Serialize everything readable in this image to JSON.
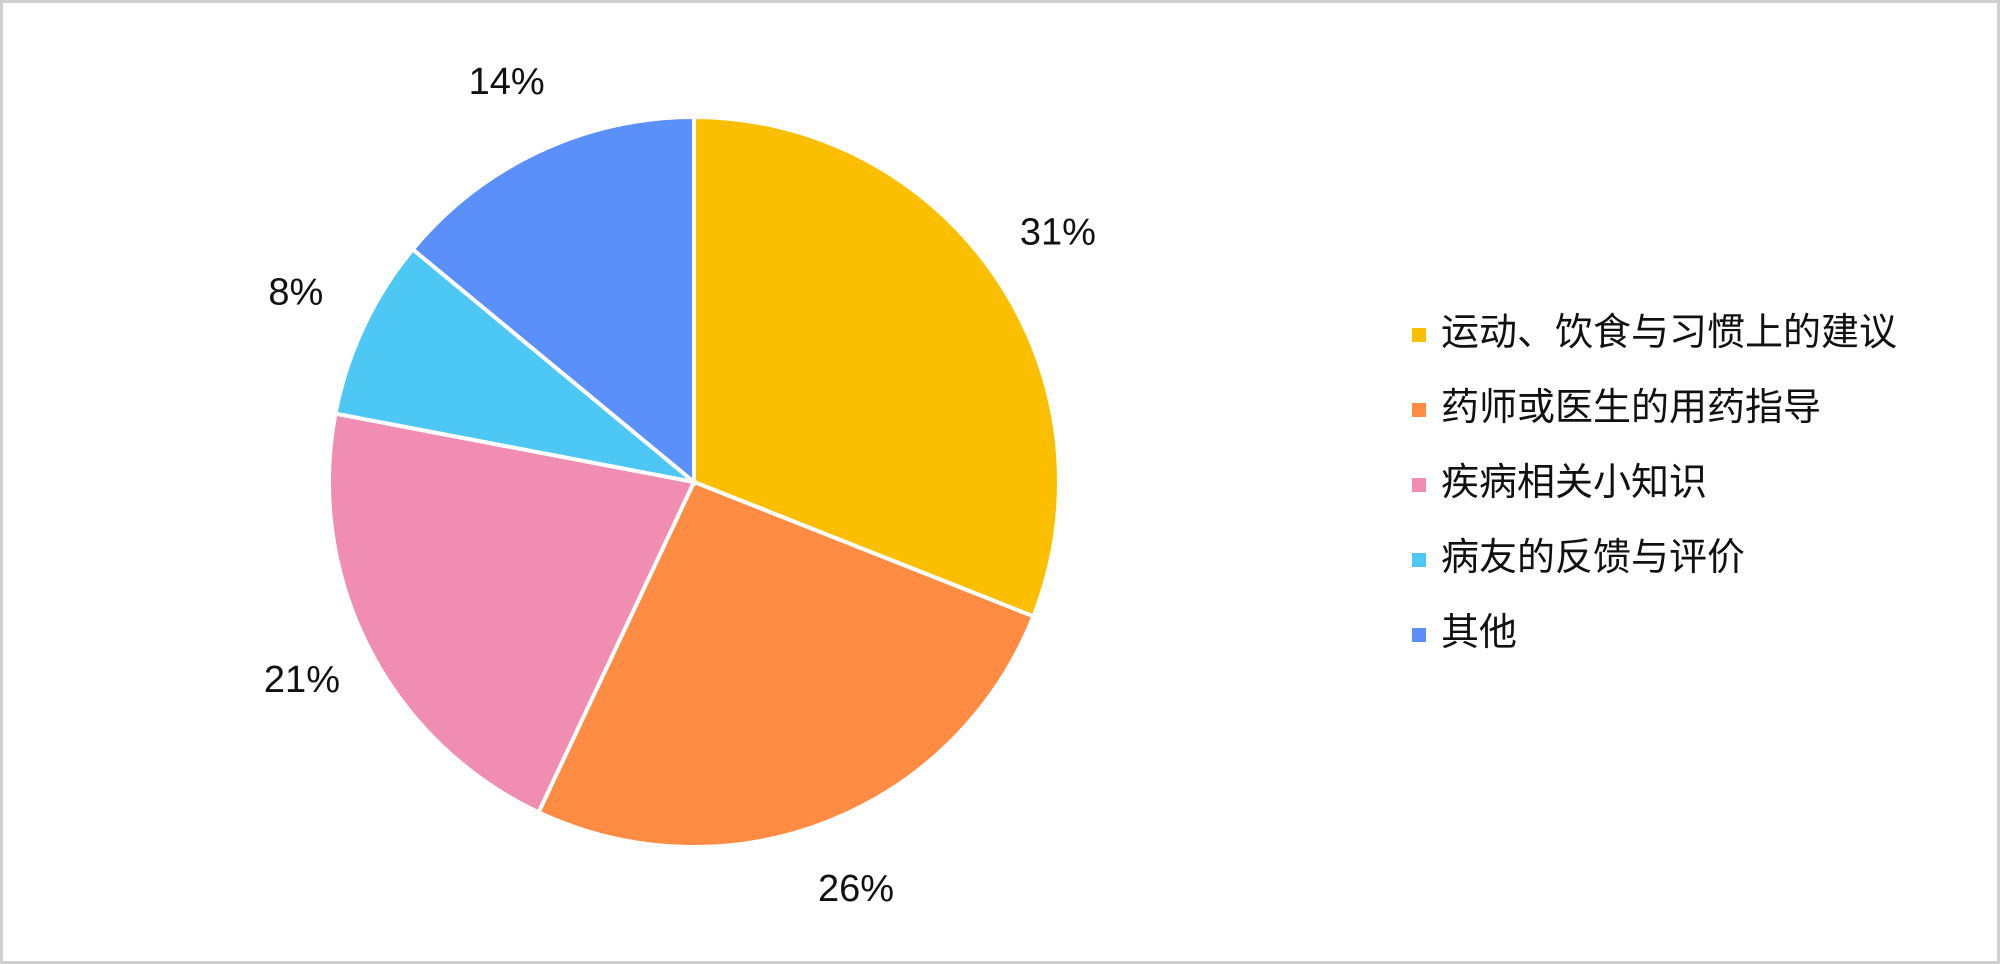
{
  "chart_data": {
    "type": "pie",
    "categories": [
      "运动、饮食与习惯上的建议",
      "药师或医生的用药指导",
      "疾病相关小知识",
      "病友的反馈与评价",
      "其他"
    ],
    "values": [
      31,
      26,
      21,
      8,
      14
    ],
    "value_labels": [
      "31%",
      "26%",
      "21%",
      "8%",
      "14%"
    ],
    "colors": [
      "#FBBF00",
      "#FF8C42",
      "#F08DB0",
      "#4DC8F5",
      "#5B8FF9"
    ],
    "legend": "right"
  }
}
